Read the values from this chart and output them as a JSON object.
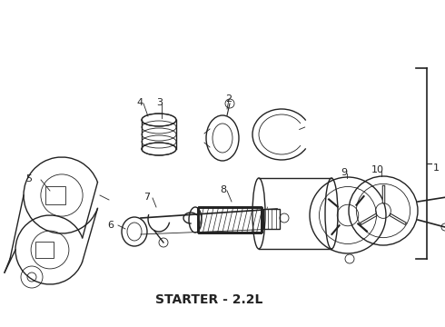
{
  "title": "STARTER - 2.2L",
  "title_fontsize": 10,
  "title_fontweight": "bold",
  "bg_color": "#ffffff",
  "line_color": "#222222",
  "fig_width": 4.9,
  "fig_height": 3.6,
  "dpi": 100
}
